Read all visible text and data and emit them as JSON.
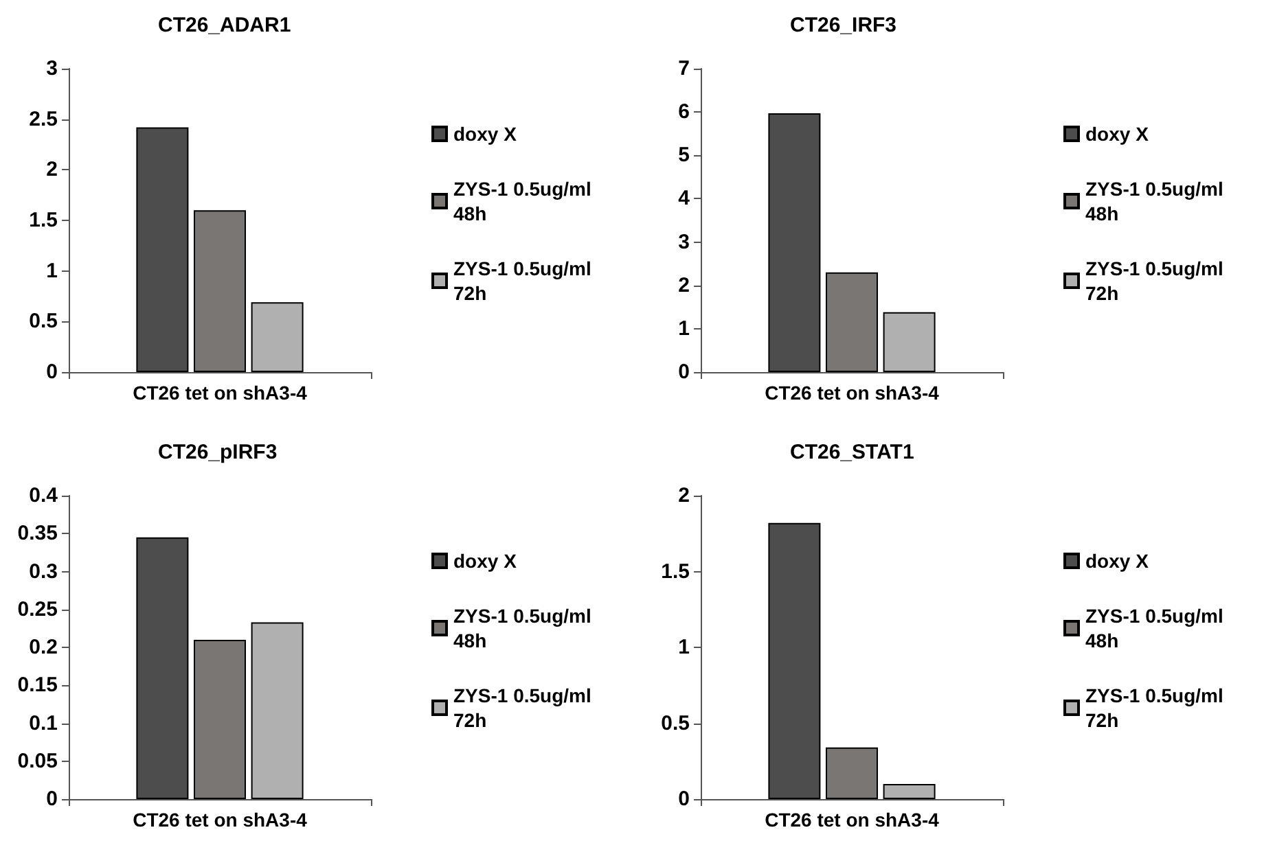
{
  "chart_data": [
    {
      "type": "bar",
      "title": "CT26_ADAR1",
      "categories": [
        "CT26 tet on shA3-4"
      ],
      "ylim": [
        0,
        3
      ],
      "yticks": [
        0,
        0.5,
        1,
        1.5,
        2,
        2.5,
        3
      ],
      "grid": false,
      "legend": "right",
      "series": [
        {
          "name": "doxy X",
          "color": "#4d4d4d",
          "values": [
            2.42
          ]
        },
        {
          "name": "ZYS-1 0.5ug/ml 48h",
          "color": "#7a7674",
          "values": [
            1.6
          ]
        },
        {
          "name": "ZYS-1 0.5ug/ml 72h",
          "color": "#b0b0b0",
          "values": [
            0.69
          ]
        }
      ]
    },
    {
      "type": "bar",
      "title": "CT26_IRF3",
      "categories": [
        "CT26 tet on shA3-4"
      ],
      "ylim": [
        0,
        7
      ],
      "yticks": [
        0,
        1,
        2,
        3,
        4,
        5,
        6,
        7
      ],
      "grid": false,
      "legend": "right",
      "series": [
        {
          "name": "doxy X",
          "color": "#4d4d4d",
          "values": [
            5.97
          ]
        },
        {
          "name": "ZYS-1 0.5ug/ml 48h",
          "color": "#7a7674",
          "values": [
            2.3
          ]
        },
        {
          "name": "ZYS-1 0.5ug/ml 72h",
          "color": "#b0b0b0",
          "values": [
            1.38
          ]
        }
      ]
    },
    {
      "type": "bar",
      "title": "CT26_pIRF3",
      "categories": [
        "CT26 tet on shA3-4"
      ],
      "ylim": [
        0,
        0.4
      ],
      "yticks": [
        0,
        0.05,
        0.1,
        0.15,
        0.2,
        0.25,
        0.3,
        0.35,
        0.4
      ],
      "grid": false,
      "legend": "right",
      "series": [
        {
          "name": "doxy X",
          "color": "#4d4d4d",
          "values": [
            0.345
          ]
        },
        {
          "name": "ZYS-1 0.5ug/ml 48h",
          "color": "#7a7674",
          "values": [
            0.21
          ]
        },
        {
          "name": "ZYS-1 0.5ug/ml 72h",
          "color": "#b0b0b0",
          "values": [
            0.233
          ]
        }
      ]
    },
    {
      "type": "bar",
      "title": "CT26_STAT1",
      "categories": [
        "CT26 tet on shA3-4"
      ],
      "ylim": [
        0,
        2
      ],
      "yticks": [
        0,
        0.5,
        1,
        1.5,
        2
      ],
      "grid": false,
      "legend": "right",
      "series": [
        {
          "name": "doxy X",
          "color": "#4d4d4d",
          "values": [
            1.82
          ]
        },
        {
          "name": "ZYS-1 0.5ug/ml 48h",
          "color": "#7a7674",
          "values": [
            0.34
          ]
        },
        {
          "name": "ZYS-1 0.5ug/ml 72h",
          "color": "#b0b0b0",
          "values": [
            0.1
          ]
        }
      ]
    }
  ]
}
